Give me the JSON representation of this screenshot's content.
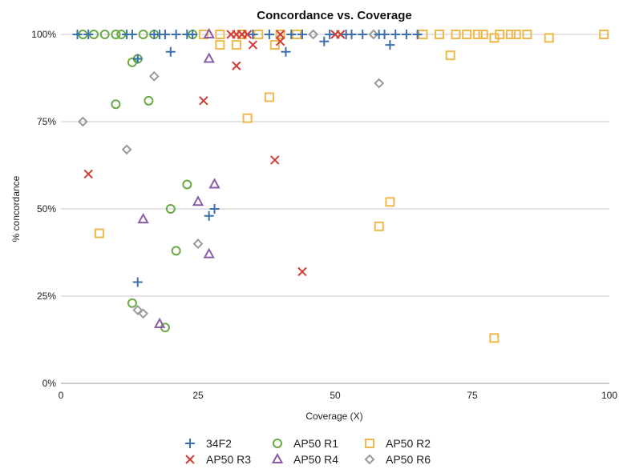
{
  "chart_data": {
    "type": "scatter",
    "title": "Concordance vs. Coverage",
    "xlabel": "Coverage (X)",
    "ylabel": "% concordance",
    "xlim": [
      0,
      100
    ],
    "ylim": [
      0,
      100
    ],
    "x_ticks": [
      0,
      25,
      50,
      75,
      100
    ],
    "y_ticks": [
      0,
      25,
      50,
      75,
      100
    ],
    "y_tick_labels": [
      "0%",
      "25%",
      "50%",
      "75%",
      "100%"
    ],
    "grid": "horizontal",
    "legend_position": "bottom",
    "series": [
      {
        "name": "34F2",
        "marker": "plus",
        "color": "#3a6fb0",
        "points": [
          [
            3,
            100
          ],
          [
            5,
            100
          ],
          [
            12,
            100
          ],
          [
            13,
            100
          ],
          [
            14,
            93
          ],
          [
            14,
            29
          ],
          [
            17,
            100
          ],
          [
            18,
            100
          ],
          [
            19,
            100
          ],
          [
            20,
            95
          ],
          [
            21,
            100
          ],
          [
            23,
            100
          ],
          [
            24,
            100
          ],
          [
            27,
            48
          ],
          [
            28,
            50
          ],
          [
            35,
            100
          ],
          [
            38,
            100
          ],
          [
            41,
            95
          ],
          [
            42,
            100
          ],
          [
            44,
            100
          ],
          [
            48,
            98
          ],
          [
            49,
            100
          ],
          [
            52,
            100
          ],
          [
            53,
            100
          ],
          [
            55,
            100
          ],
          [
            58,
            100
          ],
          [
            59,
            100
          ],
          [
            60,
            97
          ],
          [
            61,
            100
          ],
          [
            63,
            100
          ],
          [
            65,
            100
          ]
        ]
      },
      {
        "name": "AP50 R1",
        "marker": "circle",
        "color": "#6aaa45",
        "points": [
          [
            4,
            100
          ],
          [
            6,
            100
          ],
          [
            8,
            100
          ],
          [
            10,
            100
          ],
          [
            10,
            80
          ],
          [
            11,
            100
          ],
          [
            13,
            92
          ],
          [
            13,
            23
          ],
          [
            14,
            93
          ],
          [
            15,
            100
          ],
          [
            16,
            81
          ],
          [
            17,
            100
          ],
          [
            19,
            16
          ],
          [
            20,
            50
          ],
          [
            21,
            38
          ],
          [
            23,
            57
          ],
          [
            24,
            100
          ]
        ]
      },
      {
        "name": "AP50 R2",
        "marker": "square",
        "color": "#f0b84a",
        "points": [
          [
            7,
            43
          ],
          [
            26,
            100
          ],
          [
            29,
            97
          ],
          [
            29,
            100
          ],
          [
            32,
            97
          ],
          [
            33,
            100
          ],
          [
            34,
            76
          ],
          [
            36,
            100
          ],
          [
            38,
            82
          ],
          [
            39,
            97
          ],
          [
            40,
            100
          ],
          [
            43,
            100
          ],
          [
            58,
            45
          ],
          [
            60,
            52
          ],
          [
            66,
            100
          ],
          [
            69,
            100
          ],
          [
            71,
            94
          ],
          [
            72,
            100
          ],
          [
            74,
            100
          ],
          [
            76,
            100
          ],
          [
            77,
            100
          ],
          [
            79,
            99
          ],
          [
            79,
            13
          ],
          [
            80,
            100
          ],
          [
            82,
            100
          ],
          [
            83,
            100
          ],
          [
            85,
            100
          ],
          [
            89,
            99
          ],
          [
            99,
            100
          ]
        ]
      },
      {
        "name": "AP50 R3",
        "marker": "x",
        "color": "#d23c36",
        "points": [
          [
            5,
            60
          ],
          [
            26,
            81
          ],
          [
            31,
            100
          ],
          [
            32,
            91
          ],
          [
            32,
            100
          ],
          [
            33,
            100
          ],
          [
            34,
            100
          ],
          [
            35,
            97
          ],
          [
            39,
            64
          ],
          [
            40,
            100
          ],
          [
            40,
            98
          ],
          [
            44,
            32
          ],
          [
            50,
            100
          ],
          [
            51,
            100
          ]
        ]
      },
      {
        "name": "AP50 R4",
        "marker": "triangle",
        "color": "#8c5ba8",
        "points": [
          [
            15,
            47
          ],
          [
            18,
            17
          ],
          [
            25,
            52
          ],
          [
            27,
            100
          ],
          [
            27,
            93
          ],
          [
            27,
            37
          ],
          [
            28,
            57
          ]
        ]
      },
      {
        "name": "AP50 R6",
        "marker": "diamond",
        "color": "#9a9a9a",
        "points": [
          [
            4,
            75
          ],
          [
            12,
            67
          ],
          [
            14,
            21
          ],
          [
            15,
            20
          ],
          [
            17,
            88
          ],
          [
            25,
            40
          ],
          [
            46,
            100
          ],
          [
            57,
            100
          ],
          [
            58,
            86
          ]
        ]
      }
    ]
  }
}
